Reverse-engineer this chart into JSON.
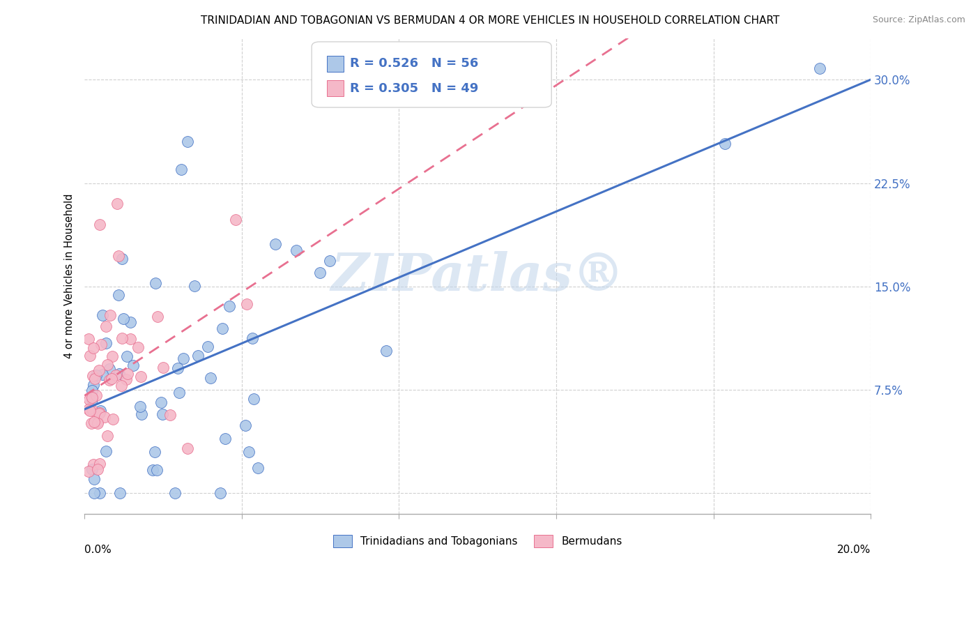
{
  "title": "TRINIDADIAN AND TOBAGONIAN VS BERMUDAN 4 OR MORE VEHICLES IN HOUSEHOLD CORRELATION CHART",
  "source": "Source: ZipAtlas.com",
  "ylabel": "4 or more Vehicles in Household",
  "yticks": [
    0.0,
    0.075,
    0.15,
    0.225,
    0.3
  ],
  "ytick_labels": [
    "",
    "7.5%",
    "15.0%",
    "22.5%",
    "30.0%"
  ],
  "xlim": [
    0.0,
    0.2
  ],
  "ylim": [
    -0.015,
    0.33
  ],
  "r_blue": 0.526,
  "n_blue": 56,
  "r_pink": 0.305,
  "n_pink": 49,
  "legend_label_blue": "Trinidadians and Tobagonians",
  "legend_label_pink": "Bermudans",
  "blue_color": "#adc8e8",
  "pink_color": "#f5b8c8",
  "line_blue": "#4472c4",
  "line_pink": "#e87090",
  "watermark": "ZIPatlas®",
  "title_fontsize": 11,
  "source_fontsize": 9
}
